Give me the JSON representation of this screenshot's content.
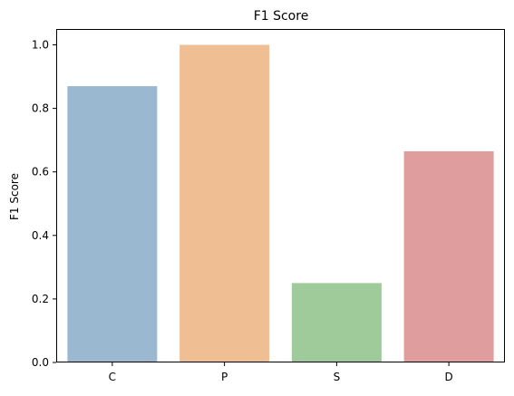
{
  "chart_data": {
    "type": "bar",
    "title": "F1 Score",
    "xlabel": "",
    "ylabel": "F1 Score",
    "categories": [
      "C",
      "P",
      "S",
      "D"
    ],
    "values": [
      0.87,
      1.0,
      0.25,
      0.665
    ],
    "colors": [
      "#9ab8d0",
      "#efbf93",
      "#9fca99",
      "#df9d9e"
    ],
    "ylim": [
      0,
      1.05
    ],
    "yticks": [
      0.0,
      0.2,
      0.4,
      0.6,
      0.8,
      1.0
    ],
    "ytick_labels": [
      "0.0",
      "0.2",
      "0.4",
      "0.6",
      "0.8",
      "1.0"
    ],
    "grid": false,
    "legend": null
  }
}
